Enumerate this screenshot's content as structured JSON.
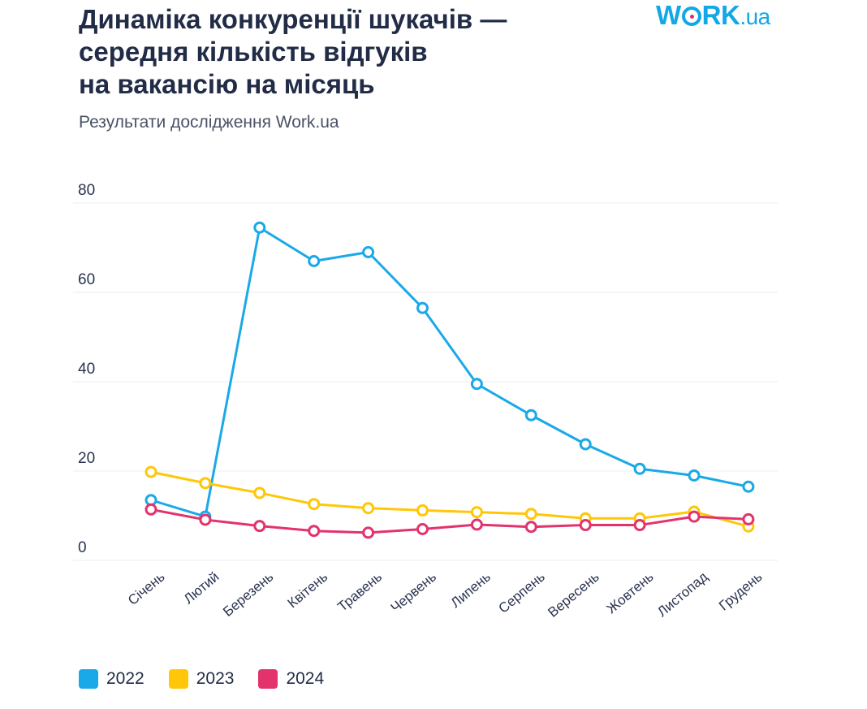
{
  "header": {
    "title_lines": [
      "Динаміка конкуренції шукачів —",
      "середня кількість відгуків",
      "на вакансію на місяць"
    ],
    "subtitle": "Результати дослідження Work.ua",
    "logo": {
      "prefix": "W",
      "suffix": "RK",
      "domain": ".ua"
    }
  },
  "colors": {
    "series_2022": "#1aa9e8",
    "series_2023": "#ffc708",
    "series_2024": "#e3336c",
    "grid": "#e9ecf1",
    "axis_text": "#2a3350"
  },
  "chart_data": {
    "type": "line",
    "title": "Динаміка конкуренції шукачів — середня кількість відгуків на вакансію на місяць",
    "subtitle": "Результати дослідження Work.ua",
    "categories": [
      "Січень",
      "Лютий",
      "Березень",
      "Квітень",
      "Травень",
      "Червень",
      "Липень",
      "Серпень",
      "Вересень",
      "Жовтень",
      "Листопад",
      "Грудень"
    ],
    "yticks": [
      "0",
      "20",
      "40",
      "60",
      "80"
    ],
    "ylim": [
      0,
      80
    ],
    "grid": true,
    "legend_position": "bottom-left",
    "series": [
      {
        "name": "2022",
        "color": "#1aa9e8",
        "values": [
          13.5,
          9.8,
          74.5,
          67,
          69,
          56.5,
          39.5,
          32.5,
          26,
          20.5,
          19,
          16.5
        ]
      },
      {
        "name": "2023",
        "color": "#ffc708",
        "values": [
          19.8,
          17.3,
          15.1,
          12.6,
          11.7,
          11.2,
          10.8,
          10.4,
          9.4,
          9.4,
          10.9,
          7.6
        ]
      },
      {
        "name": "2024",
        "color": "#e3336c",
        "values": [
          11.4,
          9.1,
          7.7,
          6.6,
          6.2,
          7,
          8,
          7.5,
          7.9,
          7.9,
          9.8,
          9.2
        ]
      }
    ]
  }
}
